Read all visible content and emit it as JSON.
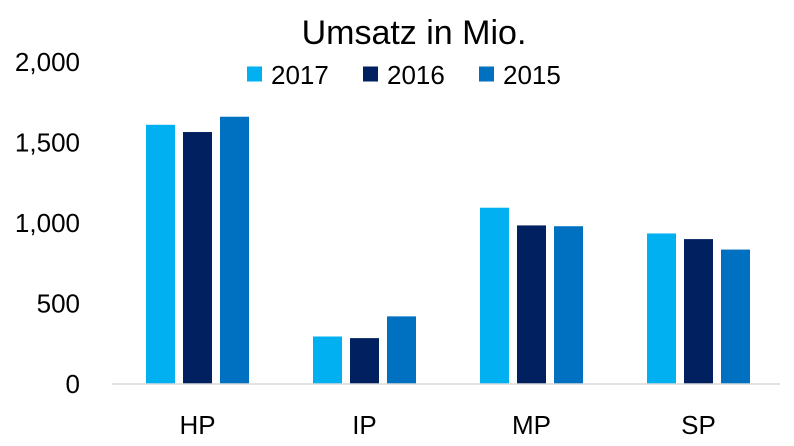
{
  "chart_data": {
    "type": "bar",
    "title": "Umsatz in Mio.",
    "xlabel": "",
    "ylabel": "",
    "categories": [
      "HP",
      "IP",
      "MP",
      "SP"
    ],
    "series": [
      {
        "name": "2017",
        "color": "#00B0F0",
        "values": [
          1610,
          295,
          1095,
          935
        ]
      },
      {
        "name": "2016",
        "color": "#002060",
        "values": [
          1565,
          285,
          985,
          900
        ]
      },
      {
        "name": "2015",
        "color": "#0070C0",
        "values": [
          1660,
          420,
          980,
          835
        ]
      }
    ],
    "ylim": [
      0,
      2000
    ],
    "yticks": [
      "0",
      "500",
      "1,000",
      "1,500",
      "2,000"
    ],
    "ytick_values": [
      0,
      500,
      1000,
      1500,
      2000
    ],
    "grid": false,
    "legend_position": "top-center",
    "axis_color": "#D9D9D9"
  }
}
